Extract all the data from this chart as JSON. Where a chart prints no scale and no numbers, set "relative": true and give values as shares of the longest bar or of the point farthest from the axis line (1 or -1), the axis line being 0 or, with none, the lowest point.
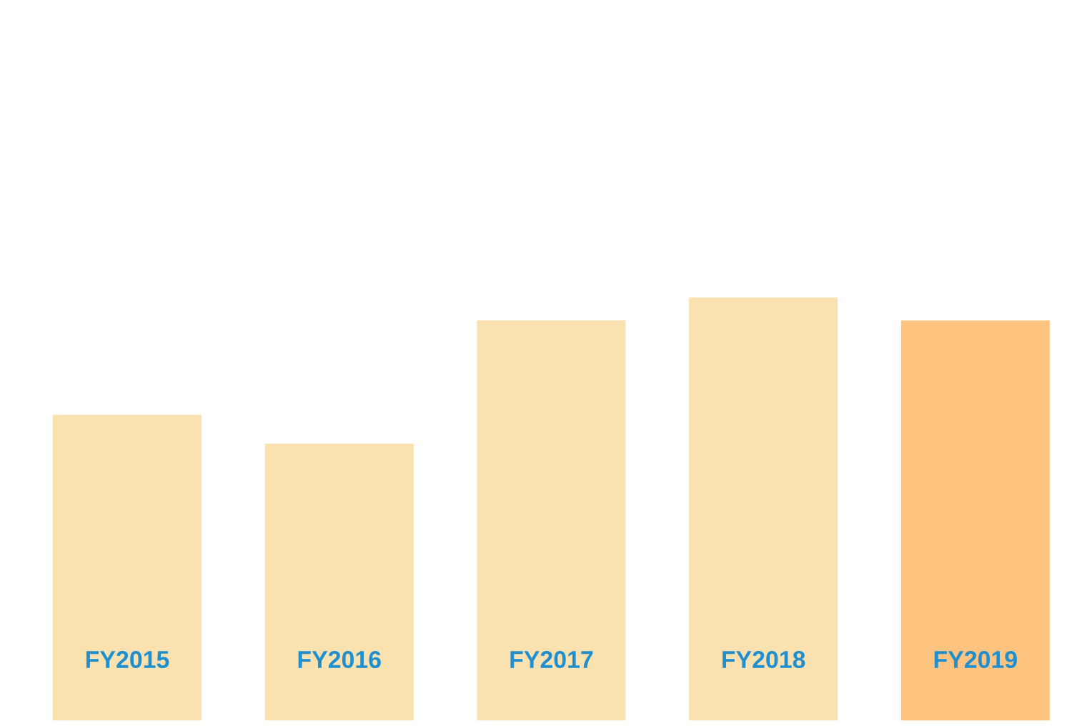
{
  "chart_data": {
    "type": "bar",
    "relative": true,
    "categories": [
      "FY2015",
      "FY2016",
      "FY2017",
      "FY2018",
      "FY2019"
    ],
    "values": [
      0.723,
      0.655,
      0.946,
      1,
      0.946
    ],
    "colors": [
      "#f9e2b0",
      "#f9e2b0",
      "#f9e2b0",
      "#f9e2b0",
      "#fec47f"
    ]
  }
}
